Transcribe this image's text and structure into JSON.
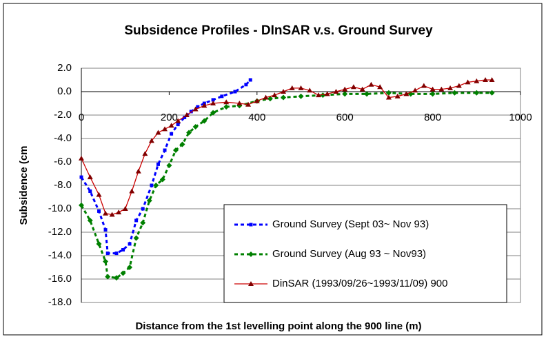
{
  "chart_data": {
    "type": "line",
    "title": "Subsidence Profiles - DInSAR v.s. Ground Survey",
    "x_label": "Distance from the 1st levelling point along the 900 line (m)",
    "y_label": "Subsidence (cm",
    "xlim": [
      0,
      1000
    ],
    "xticks": [
      0,
      200,
      400,
      600,
      800,
      1000
    ],
    "ylim": [
      -18,
      2
    ],
    "yticks": [
      {
        "value": 2,
        "label": "2.0"
      },
      {
        "value": 0,
        "label": "0.0"
      },
      {
        "value": -2,
        "label": "-2.0"
      },
      {
        "value": -4,
        "label": "-4.0"
      },
      {
        "value": -6,
        "label": "-6.0"
      },
      {
        "value": -8,
        "label": "-8.0"
      },
      {
        "value": -10,
        "label": "-10.0"
      },
      {
        "value": -12,
        "label": "-12.0"
      },
      {
        "value": -14,
        "label": "-14.0"
      },
      {
        "value": -16,
        "label": "-16.0"
      },
      {
        "value": -18,
        "label": "-18.0"
      }
    ],
    "grid": true,
    "legend": "lower-right",
    "series": [
      {
        "name": "Ground Survey (Sept 03~ Nov 93)",
        "color": "#0000ff",
        "style": "dashed",
        "marker": "square",
        "x": [
          0,
          20,
          40,
          55,
          60,
          80,
          95,
          110,
          125,
          140,
          160,
          175,
          190,
          205,
          220,
          235,
          250,
          265,
          280,
          300,
          320,
          350,
          375,
          385
        ],
        "values": [
          -7.3,
          -8.5,
          -10.2,
          -11.8,
          -13.8,
          -13.8,
          -13.5,
          -13.0,
          -11.0,
          -10.0,
          -8.0,
          -6.2,
          -5.0,
          -3.6,
          -2.8,
          -2.2,
          -1.7,
          -1.3,
          -1.0,
          -0.7,
          -0.4,
          0.0,
          0.6,
          1.0
        ]
      },
      {
        "name": "Ground Survey (Aug 93 ~ Nov93)",
        "color": "#008000",
        "style": "dashed",
        "marker": "diamond",
        "x": [
          0,
          20,
          40,
          55,
          60,
          80,
          95,
          110,
          125,
          140,
          155,
          170,
          185,
          200,
          215,
          230,
          245,
          260,
          280,
          300,
          330,
          360,
          400,
          430,
          460,
          500,
          550,
          600,
          650,
          700,
          750,
          800,
          850,
          900,
          935
        ],
        "values": [
          -9.7,
          -11.0,
          -13.0,
          -14.5,
          -15.8,
          -15.9,
          -15.5,
          -15.0,
          -12.5,
          -11.2,
          -9.3,
          -8.0,
          -7.5,
          -6.3,
          -5.0,
          -4.5,
          -3.5,
          -3.0,
          -2.5,
          -1.8,
          -1.3,
          -1.2,
          -0.8,
          -0.6,
          -0.5,
          -0.4,
          -0.3,
          -0.2,
          -0.2,
          -0.1,
          -0.2,
          -0.2,
          -0.1,
          -0.1,
          -0.1
        ]
      },
      {
        "name": "DinSAR (1993/09/26~1993/11/09) 900",
        "color": "#cc0000",
        "style": "solid",
        "marker": "triangle",
        "x": [
          0,
          20,
          40,
          55,
          70,
          85,
          100,
          115,
          130,
          145,
          160,
          175,
          190,
          205,
          220,
          240,
          260,
          280,
          300,
          330,
          360,
          380,
          400,
          420,
          440,
          460,
          480,
          500,
          520,
          540,
          560,
          580,
          600,
          620,
          640,
          660,
          680,
          700,
          720,
          740,
          760,
          780,
          800,
          820,
          840,
          860,
          880,
          900,
          920,
          935
        ],
        "values": [
          -5.7,
          -7.3,
          -8.8,
          -10.4,
          -10.5,
          -10.3,
          -10.0,
          -8.5,
          -6.8,
          -5.3,
          -4.2,
          -3.5,
          -3.2,
          -2.9,
          -2.5,
          -2.0,
          -1.5,
          -1.2,
          -1.0,
          -0.9,
          -1.0,
          -1.1,
          -0.8,
          -0.5,
          -0.3,
          0.0,
          0.3,
          0.3,
          0.1,
          -0.3,
          -0.2,
          0.0,
          0.2,
          0.4,
          0.2,
          0.6,
          0.4,
          -0.5,
          -0.4,
          -0.2,
          0.1,
          0.5,
          0.2,
          0.2,
          0.3,
          0.5,
          0.8,
          0.9,
          1.0,
          1.0
        ]
      }
    ]
  }
}
